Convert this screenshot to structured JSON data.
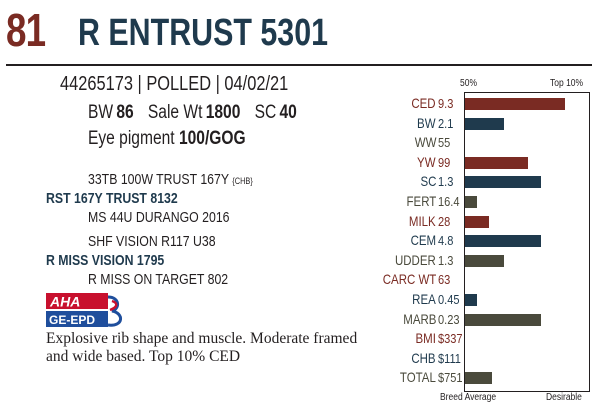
{
  "lot": {
    "number": "81",
    "name": "R ENTRUST 5301"
  },
  "info": {
    "id_line": "44265173 | POLLED | 04/02/21",
    "bw_label": "BW",
    "bw_value": "86",
    "salewt_label": "Sale Wt",
    "salewt_value": "1800",
    "sc_label": "SC",
    "sc_value": "40",
    "eye_label": "Eye pigment",
    "eye_value": "100/GOG"
  },
  "pedigree": {
    "sire_sire": "33TB 100W TRUST 167Y",
    "sire_sire_note": "{CHB}",
    "sire": "RST 167Y TRUST 8132",
    "sire_dam": "MS 44U DURANGO 2016",
    "dam_sire": "SHF VISION R117 U38",
    "dam": "R MISS VISION 1795",
    "dam_dam": "R MISS ON TARGET 802"
  },
  "logo": {
    "top": "AHA",
    "bottom": "GE-EPD"
  },
  "description": "Explosive rib shape and muscle. Moderate framed and wide based. Top 10% CED",
  "colors": {
    "red": "#7a2b23",
    "blue": "#1f3a4d",
    "olive": "#4a4a3c"
  },
  "chart_data": {
    "type": "bar",
    "header_left": "50%",
    "header_right": "Top 10%",
    "footer_left": "Breed Average",
    "footer_right": "Desirable",
    "scale_note": "bar length = desirability from breed average (0) to desirable (1)",
    "rows": [
      {
        "trait": "CED",
        "value": "9.3",
        "level": 0.82,
        "color": "red"
      },
      {
        "trait": "BW",
        "value": "2.1",
        "level": 0.32,
        "color": "blue"
      },
      {
        "trait": "WW",
        "value": "55",
        "level": 0,
        "color": "olive"
      },
      {
        "trait": "YW",
        "value": "99",
        "level": 0.52,
        "color": "red"
      },
      {
        "trait": "SC",
        "value": "1.3",
        "level": 0.62,
        "color": "blue"
      },
      {
        "trait": "FERT",
        "value": "16.4",
        "level": 0.1,
        "color": "olive"
      },
      {
        "trait": "MILK",
        "value": "28",
        "level": 0.2,
        "color": "red"
      },
      {
        "trait": "CEM",
        "value": "4.8",
        "level": 0.62,
        "color": "blue"
      },
      {
        "trait": "UDDER",
        "value": "1.3",
        "level": 0.32,
        "color": "olive"
      },
      {
        "trait": "CARC WT",
        "value": "63",
        "level": 0,
        "color": "red"
      },
      {
        "trait": "REA",
        "value": "0.45",
        "level": 0.1,
        "color": "blue"
      },
      {
        "trait": "MARB",
        "value": "0.23",
        "level": 0.62,
        "color": "olive"
      },
      {
        "trait": "BMI",
        "value": "$337",
        "level": 0,
        "color": "red"
      },
      {
        "trait": "CHB",
        "value": "$111",
        "level": 0,
        "color": "blue"
      },
      {
        "trait": "TOTAL",
        "value": "$751",
        "level": 0.22,
        "color": "olive"
      }
    ]
  }
}
